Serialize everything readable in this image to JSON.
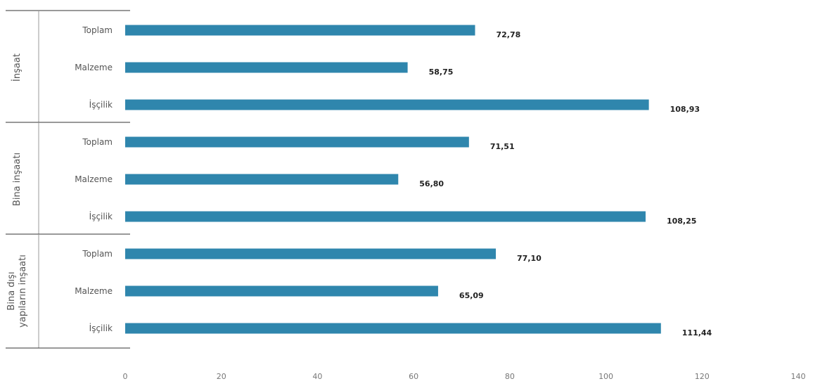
{
  "chart_data": {
    "type": "bar",
    "orientation": "horizontal",
    "groups": [
      {
        "name": "İnşaat",
        "categories": [
          "Toplam",
          "Malzeme",
          "İşçilik"
        ],
        "values": [
          72.78,
          58.75,
          108.93
        ]
      },
      {
        "name": "Bina inşaatı",
        "categories": [
          "Toplam",
          "Malzeme",
          "İşçilik"
        ],
        "values": [
          71.51,
          56.8,
          108.25
        ]
      },
      {
        "name": "Bina dışı yapıların inşaatı",
        "categories": [
          "Toplam",
          "Malzeme",
          "İşçilik"
        ],
        "values": [
          77.1,
          65.09,
          111.44
        ]
      }
    ],
    "value_labels": [
      "72,78",
      "58,75",
      "108,93",
      "71,51",
      "56,80",
      "108,25",
      "77,10",
      "65,09",
      "111,44"
    ],
    "xticks": [
      "0",
      "20",
      "40",
      "60",
      "80",
      "100",
      "120",
      "140"
    ],
    "xlim": [
      0,
      140
    ],
    "grid": false,
    "colors": {
      "bar": "#2f86ad",
      "text": "#555555"
    }
  }
}
